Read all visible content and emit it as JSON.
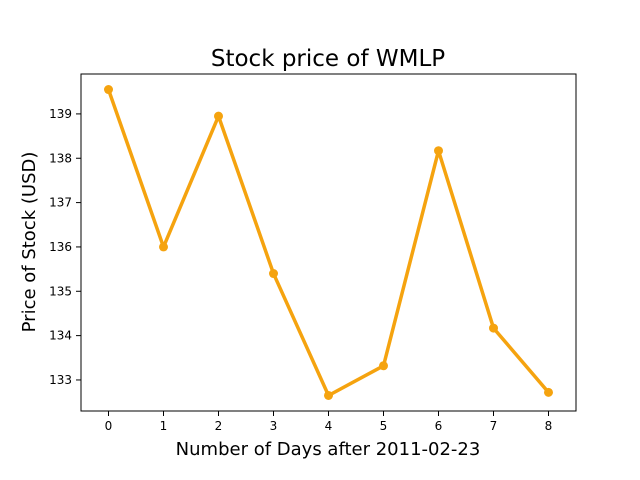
{
  "chart_data": {
    "type": "line",
    "title": "Stock price of WMLP",
    "xlabel": "Number of Days after 2011-02-23",
    "ylabel": "Price of Stock (USD)",
    "x": [
      0,
      1,
      2,
      3,
      4,
      5,
      6,
      7,
      8
    ],
    "series": [
      {
        "values": [
          139.55,
          136.0,
          138.95,
          135.4,
          132.65,
          133.32,
          138.17,
          134.17,
          132.72
        ],
        "color": "#f5a30f"
      }
    ],
    "xlim": [
      -0.5,
      8.5
    ],
    "ylim": [
      132.3,
      139.9
    ],
    "xticks": [
      0,
      1,
      2,
      3,
      4,
      5,
      6,
      7,
      8
    ],
    "yticks": [
      133,
      134,
      135,
      136,
      137,
      138,
      139
    ],
    "grid": false,
    "legend": "none"
  }
}
